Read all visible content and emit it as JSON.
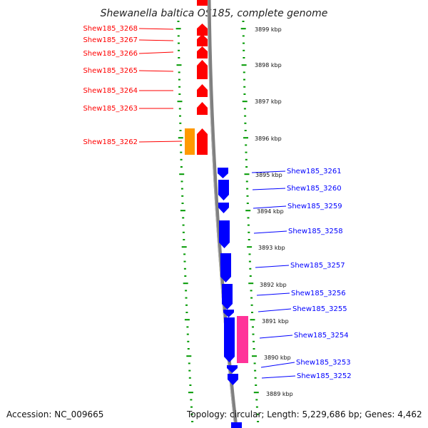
{
  "title": "Shewanella baltica OS185, complete genome",
  "footer": {
    "accession": "Accession: NC_009665",
    "summary": "Topology: circular; Length: 5,229,686 bp; Genes: 4,462"
  },
  "colors": {
    "forward_gene": "#ff0000",
    "reverse_gene": "#0000ff",
    "orange_feature": "#ff9900",
    "pink_feature": "#ff3399",
    "backbone": "#808080",
    "tick": "#009900"
  },
  "kbp_labels": [
    "3899 kbp",
    "3898 kbp",
    "3897 kbp",
    "3896 kbp",
    "3895 kbp",
    "3894 kbp",
    "3893 kbp",
    "3892 kbp",
    "3891 kbp",
    "3890 kbp",
    "3889 kbp"
  ],
  "left_genes": [
    "Shew185_3268",
    "Shew185_3267",
    "Shew185_3266",
    "Shew185_3265",
    "Shew185_3264",
    "Shew185_3263",
    "Shew185_3262"
  ],
  "right_genes": [
    "Shew185_3261",
    "Shew185_3260",
    "Shew185_3259",
    "Shew185_3258",
    "Shew185_3257",
    "Shew185_3256",
    "Shew185_3255",
    "Shew185_3254",
    "Shew185_3253",
    "Shew185_3252"
  ]
}
